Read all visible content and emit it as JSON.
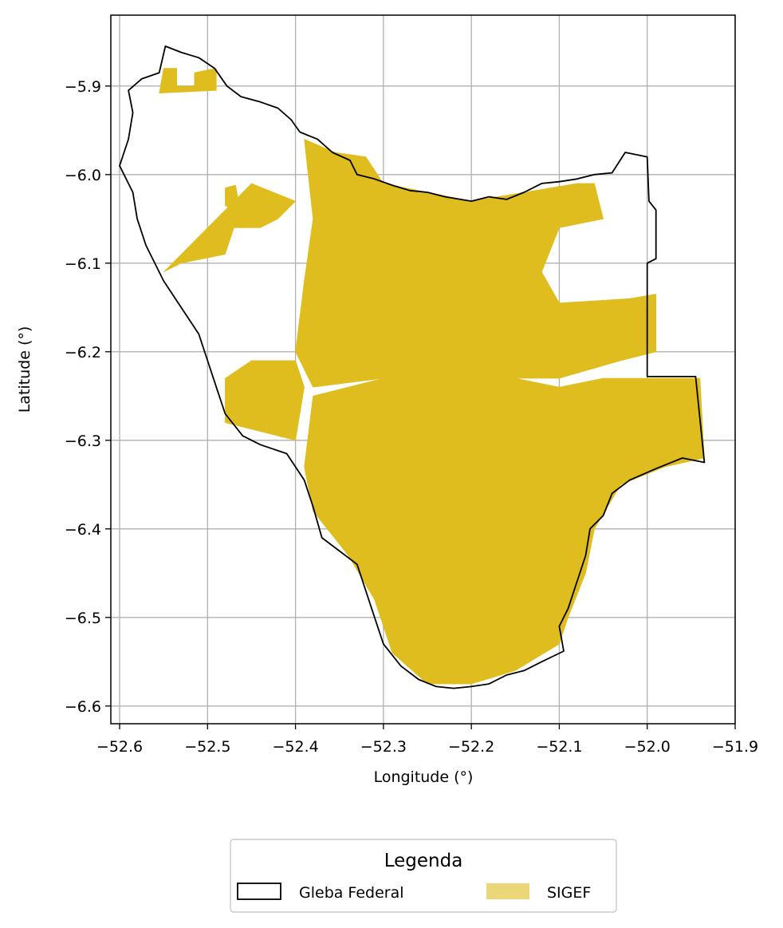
{
  "chart_data": {
    "type": "map",
    "title": "",
    "xlabel": "Longitude (°)",
    "ylabel": "Latitude (°)",
    "xlim": [
      -52.61,
      -51.9
    ],
    "ylim": [
      -6.62,
      -5.82
    ],
    "x_ticks": [
      -52.6,
      -52.5,
      -52.4,
      -52.3,
      -52.2,
      -52.1,
      -52.0,
      -51.9
    ],
    "x_tick_labels": [
      "−52.6",
      "−52.5",
      "−52.4",
      "−52.3",
      "−52.2",
      "−52.1",
      "−52.0",
      "−51.9"
    ],
    "y_ticks": [
      -5.9,
      -6.0,
      -6.1,
      -6.2,
      -6.3,
      -6.4,
      -6.5,
      -6.6
    ],
    "y_tick_labels": [
      "−5.9",
      "−6.0",
      "−6.1",
      "−6.2",
      "−6.3",
      "−6.4",
      "−6.5",
      "−6.6"
    ],
    "grid": true,
    "legend": {
      "title": "Legenda",
      "placement": "bottom-center",
      "entries": [
        {
          "label": "Gleba Federal",
          "style": "outline",
          "color": "#000000"
        },
        {
          "label": "SIGEF",
          "style": "fill",
          "color": "#dfbd1e"
        }
      ]
    },
    "gleba_outline": [
      [
        -52.548,
        -5.855
      ],
      [
        -52.53,
        -5.862
      ],
      [
        -52.51,
        -5.868
      ],
      [
        -52.492,
        -5.88
      ],
      [
        -52.478,
        -5.9
      ],
      [
        -52.462,
        -5.912
      ],
      [
        -52.44,
        -5.918
      ],
      [
        -52.42,
        -5.925
      ],
      [
        -52.405,
        -5.938
      ],
      [
        -52.395,
        -5.952
      ],
      [
        -52.375,
        -5.96
      ],
      [
        -52.358,
        -5.975
      ],
      [
        -52.338,
        -5.984
      ],
      [
        -52.33,
        -6.0
      ],
      [
        -52.31,
        -6.005
      ],
      [
        -52.29,
        -6.012
      ],
      [
        -52.27,
        -6.018
      ],
      [
        -52.25,
        -6.02
      ],
      [
        -52.23,
        -6.025
      ],
      [
        -52.2,
        -6.03
      ],
      [
        -52.18,
        -6.025
      ],
      [
        -52.16,
        -6.028
      ],
      [
        -52.14,
        -6.02
      ],
      [
        -52.12,
        -6.01
      ],
      [
        -52.1,
        -6.008
      ],
      [
        -52.08,
        -6.005
      ],
      [
        -52.06,
        -6.0
      ],
      [
        -52.04,
        -5.998
      ],
      [
        -52.025,
        -5.975
      ],
      [
        -52.0,
        -5.98
      ],
      [
        -51.998,
        -6.03
      ],
      [
        -51.99,
        -6.04
      ],
      [
        -51.99,
        -6.095
      ],
      [
        -52.0,
        -6.1
      ],
      [
        -52.0,
        -6.228
      ],
      [
        -51.945,
        -6.228
      ],
      [
        -51.935,
        -6.325
      ],
      [
        -51.96,
        -6.32
      ],
      [
        -51.99,
        -6.332
      ],
      [
        -52.02,
        -6.345
      ],
      [
        -52.04,
        -6.36
      ],
      [
        -52.05,
        -6.385
      ],
      [
        -52.065,
        -6.4
      ],
      [
        -52.07,
        -6.43
      ],
      [
        -52.08,
        -6.46
      ],
      [
        -52.09,
        -6.49
      ],
      [
        -52.1,
        -6.51
      ],
      [
        -52.095,
        -6.538
      ],
      [
        -52.12,
        -6.55
      ],
      [
        -52.14,
        -6.56
      ],
      [
        -52.16,
        -6.565
      ],
      [
        -52.18,
        -6.575
      ],
      [
        -52.2,
        -6.578
      ],
      [
        -52.22,
        -6.58
      ],
      [
        -52.24,
        -6.578
      ],
      [
        -52.26,
        -6.57
      ],
      [
        -52.28,
        -6.555
      ],
      [
        -52.3,
        -6.53
      ],
      [
        -52.31,
        -6.5
      ],
      [
        -52.32,
        -6.47
      ],
      [
        -52.33,
        -6.44
      ],
      [
        -52.35,
        -6.425
      ],
      [
        -52.37,
        -6.41
      ],
      [
        -52.38,
        -6.375
      ],
      [
        -52.39,
        -6.345
      ],
      [
        -52.41,
        -6.315
      ],
      [
        -52.44,
        -6.305
      ],
      [
        -52.46,
        -6.295
      ],
      [
        -52.48,
        -6.27
      ],
      [
        -52.49,
        -6.24
      ],
      [
        -52.5,
        -6.21
      ],
      [
        -52.51,
        -6.18
      ],
      [
        -52.53,
        -6.15
      ],
      [
        -52.55,
        -6.12
      ],
      [
        -52.57,
        -6.08
      ],
      [
        -52.58,
        -6.05
      ],
      [
        -52.585,
        -6.02
      ],
      [
        -52.6,
        -5.99
      ],
      [
        -52.59,
        -5.96
      ],
      [
        -52.585,
        -5.93
      ],
      [
        -52.59,
        -5.905
      ],
      [
        -52.575,
        -5.892
      ],
      [
        -52.555,
        -5.885
      ],
      [
        -52.548,
        -5.855
      ]
    ],
    "sigef_parcels": [
      [
        [
          -52.55,
          -5.88
        ],
        [
          -52.535,
          -5.88
        ],
        [
          -52.535,
          -5.9
        ],
        [
          -52.515,
          -5.9
        ],
        [
          -52.515,
          -5.885
        ],
        [
          -52.49,
          -5.88
        ],
        [
          -52.49,
          -5.905
        ],
        [
          -52.555,
          -5.908
        ]
      ],
      [
        [
          -52.48,
          -6.015
        ],
        [
          -52.468,
          -6.012
        ],
        [
          -52.465,
          -6.03
        ],
        [
          -52.47,
          -6.04
        ],
        [
          -52.48,
          -6.035
        ]
      ],
      [
        [
          -52.53,
          -6.1
        ],
        [
          -52.48,
          -6.09
        ],
        [
          -52.47,
          -6.06
        ],
        [
          -52.44,
          -6.06
        ],
        [
          -52.42,
          -6.05
        ],
        [
          -52.4,
          -6.03
        ],
        [
          -52.45,
          -6.01
        ],
        [
          -52.52,
          -6.08
        ],
        [
          -52.55,
          -6.11
        ]
      ],
      [
        [
          -52.48,
          -6.23
        ],
        [
          -52.45,
          -6.21
        ],
        [
          -52.4,
          -6.21
        ],
        [
          -52.39,
          -6.24
        ],
        [
          -52.4,
          -6.3
        ],
        [
          -52.44,
          -6.29
        ],
        [
          -52.48,
          -6.28
        ]
      ],
      [
        [
          -52.2,
          -6.22
        ],
        [
          -52.15,
          -6.23
        ],
        [
          -52.1,
          -6.24
        ],
        [
          -52.05,
          -6.23
        ],
        [
          -52.0,
          -6.23
        ],
        [
          -51.94,
          -6.23
        ],
        [
          -51.935,
          -6.32
        ],
        [
          -51.98,
          -6.33
        ],
        [
          -52.03,
          -6.35
        ],
        [
          -52.06,
          -6.4
        ],
        [
          -52.07,
          -6.45
        ],
        [
          -52.09,
          -6.5
        ],
        [
          -52.1,
          -6.53
        ],
        [
          -52.15,
          -6.56
        ],
        [
          -52.2,
          -6.575
        ],
        [
          -52.25,
          -6.575
        ],
        [
          -52.29,
          -6.54
        ],
        [
          -52.31,
          -6.48
        ],
        [
          -52.34,
          -6.43
        ],
        [
          -52.38,
          -6.38
        ],
        [
          -52.39,
          -6.33
        ],
        [
          -52.38,
          -6.25
        ],
        [
          -52.3,
          -6.23
        ]
      ],
      [
        [
          -52.39,
          -5.96
        ],
        [
          -52.355,
          -5.975
        ],
        [
          -52.32,
          -5.98
        ],
        [
          -52.3,
          -6.01
        ],
        [
          -52.25,
          -6.02
        ],
        [
          -52.2,
          -6.03
        ],
        [
          -52.14,
          -6.02
        ],
        [
          -52.08,
          -6.01
        ],
        [
          -52.06,
          -6.01
        ],
        [
          -52.05,
          -6.05
        ],
        [
          -52.1,
          -6.06
        ],
        [
          -52.12,
          -6.11
        ],
        [
          -52.1,
          -6.145
        ],
        [
          -52.02,
          -6.14
        ],
        [
          -51.99,
          -6.135
        ],
        [
          -51.99,
          -6.2
        ],
        [
          -52.03,
          -6.21
        ],
        [
          -52.1,
          -6.23
        ],
        [
          -52.2,
          -6.23
        ],
        [
          -52.3,
          -6.23
        ],
        [
          -52.38,
          -6.24
        ],
        [
          -52.4,
          -6.2
        ],
        [
          -52.39,
          -6.12
        ],
        [
          -52.38,
          -6.05
        ]
      ]
    ]
  }
}
